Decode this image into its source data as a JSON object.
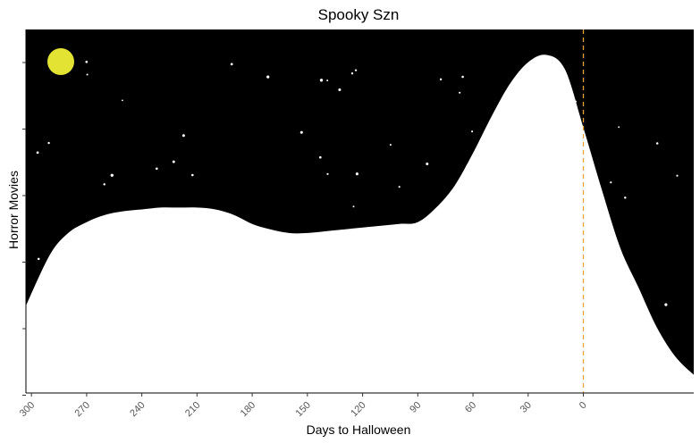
{
  "chart_data": {
    "type": "area",
    "title": "Spooky Szn",
    "xlabel": "Days to Halloween",
    "ylabel": "Horror Movies",
    "x_reversed": true,
    "xlim": [
      -60,
      303
    ],
    "x_ticks": [
      300,
      270,
      240,
      210,
      180,
      150,
      120,
      90,
      60,
      30,
      0
    ],
    "x_tick_labels": [
      "300",
      "270",
      "240",
      "210",
      "180",
      "150",
      "120",
      "90",
      "60",
      "30",
      "0"
    ],
    "y_tick_count": 6,
    "y_tick_labels_shown": false,
    "series": [
      {
        "fill": "#ffffff",
        "x": [
          303,
          290,
          280,
          270,
          260,
          250,
          240,
          230,
          220,
          210,
          200,
          190,
          180,
          170,
          160,
          150,
          140,
          130,
          120,
          110,
          100,
          90,
          80,
          70,
          60,
          50,
          40,
          30,
          20,
          10,
          0,
          -10,
          -20,
          -30,
          -40,
          -50,
          -60
        ],
        "y": [
          0.24,
          0.38,
          0.44,
          0.47,
          0.49,
          0.5,
          0.505,
          0.51,
          0.51,
          0.51,
          0.505,
          0.49,
          0.465,
          0.45,
          0.44,
          0.44,
          0.445,
          0.45,
          0.455,
          0.46,
          0.465,
          0.47,
          0.51,
          0.57,
          0.66,
          0.76,
          0.85,
          0.91,
          0.93,
          0.89,
          0.73,
          0.56,
          0.4,
          0.29,
          0.18,
          0.1,
          0.05
        ]
      }
    ],
    "reference_line": {
      "x": 0,
      "color": "#e8a33a",
      "style": "dashed"
    },
    "colors": {
      "background": "#000000",
      "area": "#ffffff",
      "moon": "#e3e334",
      "stars": "#ffffff"
    }
  }
}
